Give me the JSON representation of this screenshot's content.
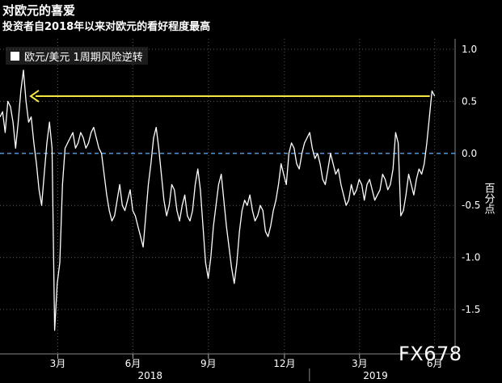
{
  "title": "对欧元的喜爱",
  "subtitle": "投资者自2018年以来对欧元的看好程度最高",
  "watermark": "FX678",
  "chart_data": {
    "type": "line",
    "legend": {
      "label": "欧元/美元 1周期风险逆转",
      "placement": "top-left"
    },
    "ylabel": "百分点",
    "ylim": [
      -1.8,
      1.0
    ],
    "yticks": [
      1.0,
      0.5,
      0.0,
      -0.5,
      -1.0,
      -1.5
    ],
    "ytick_labels": [
      "1.0",
      "0.5",
      "0.0",
      "-0.5",
      "-1.0",
      "-1.5"
    ],
    "xticks": [
      {
        "label": "3月",
        "pos": 0.127
      },
      {
        "label": "6月",
        "pos": 0.292
      },
      {
        "label": "9月",
        "pos": 0.458
      },
      {
        "label": "12月",
        "pos": 0.625
      },
      {
        "label": "3月",
        "pos": 0.79
      },
      {
        "label": "6月",
        "pos": 0.955
      }
    ],
    "years": [
      {
        "label": "2018",
        "pos": 0.33
      },
      {
        "label": "2019",
        "pos": 0.825
      }
    ],
    "year_divider": 0.68,
    "zero_line": 0.0,
    "reference_level": 0.55,
    "colors": {
      "series": "#ffffff",
      "zero_line": "#5aa0e6",
      "arrow": "#f5e642",
      "grid": "#555555"
    },
    "series": [
      {
        "values": [
          0.35,
          0.4,
          0.2,
          0.5,
          0.45,
          0.3,
          0.05,
          0.3,
          0.6,
          0.8,
          0.5,
          0.3,
          0.35,
          0.1,
          -0.1,
          -0.35,
          -0.5,
          -0.2,
          0.1,
          0.3,
          0.05,
          -1.7,
          -1.25,
          -1.05,
          -0.3,
          0.05,
          0.1,
          0.15,
          0.2,
          0.05,
          0.1,
          0.2,
          0.15,
          0.05,
          0.1,
          0.2,
          0.25,
          0.15,
          0.05,
          0.0,
          -0.2,
          -0.4,
          -0.55,
          -0.65,
          -0.6,
          -0.45,
          -0.3,
          -0.5,
          -0.55,
          -0.45,
          -0.35,
          -0.55,
          -0.6,
          -0.7,
          -0.8,
          -0.9,
          -0.6,
          -0.3,
          -0.1,
          0.15,
          0.25,
          0.05,
          -0.2,
          -0.45,
          -0.6,
          -0.5,
          -0.3,
          -0.35,
          -0.55,
          -0.65,
          -0.5,
          -0.4,
          -0.6,
          -0.65,
          -0.55,
          -0.3,
          -0.15,
          -0.35,
          -0.7,
          -1.05,
          -1.2,
          -1.0,
          -0.7,
          -0.5,
          -0.3,
          -0.2,
          -0.45,
          -0.7,
          -0.9,
          -1.1,
          -1.25,
          -1.05,
          -0.75,
          -0.55,
          -0.45,
          -0.5,
          -0.4,
          -0.55,
          -0.65,
          -0.6,
          -0.5,
          -0.55,
          -0.75,
          -0.8,
          -0.7,
          -0.55,
          -0.45,
          -0.3,
          -0.1,
          -0.2,
          -0.3,
          0.0,
          0.1,
          0.05,
          -0.1,
          -0.15,
          0.0,
          0.1,
          0.15,
          0.2,
          0.05,
          -0.05,
          0.0,
          -0.1,
          -0.25,
          -0.3,
          -0.15,
          0.0,
          -0.1,
          -0.2,
          -0.15,
          -0.3,
          -0.4,
          -0.5,
          -0.45,
          -0.3,
          -0.4,
          -0.35,
          -0.25,
          -0.3,
          -0.45,
          -0.3,
          -0.25,
          -0.35,
          -0.45,
          -0.4,
          -0.35,
          -0.2,
          -0.25,
          -0.35,
          -0.3,
          -0.15,
          0.2,
          0.1,
          -0.6,
          -0.55,
          -0.4,
          -0.2,
          -0.3,
          -0.4,
          -0.25,
          -0.15,
          -0.2,
          -0.1,
          0.1,
          0.35,
          0.6,
          0.55
        ]
      }
    ],
    "x_start": 0.0,
    "x_end": 0.955
  }
}
